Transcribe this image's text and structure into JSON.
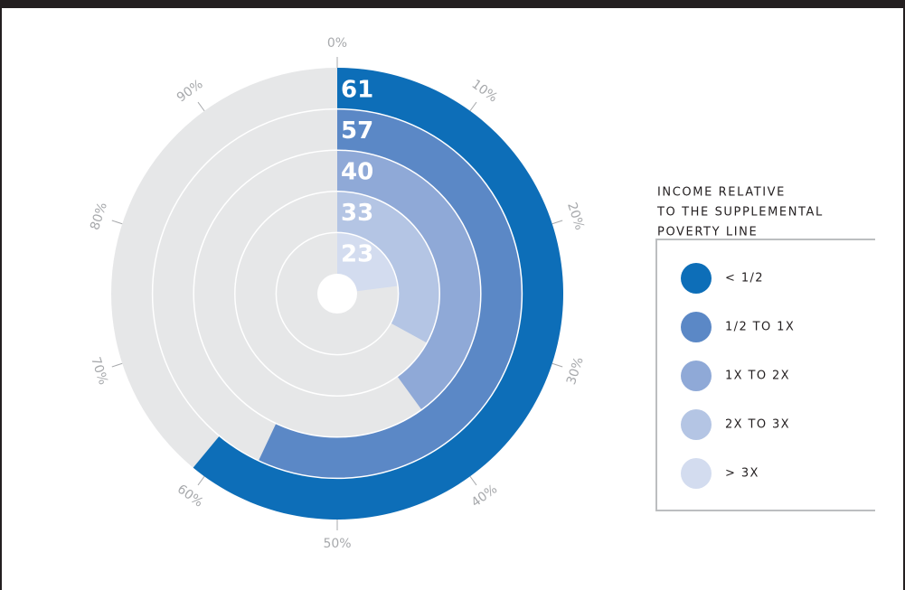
{
  "chart_data": {
    "type": "radial_bar",
    "categories": [
      "< 1/2",
      "1/2 TO 1X",
      "1X TO 2X",
      "2X TO 3X",
      "> 3X"
    ],
    "values": [
      61,
      57,
      40,
      33,
      23
    ],
    "colors": [
      "#0d6eb8",
      "#5b88c6",
      "#8fa9d7",
      "#b4c5e4",
      "#d3dcef"
    ],
    "legend_title": [
      "INCOME RELATIVE",
      "TO THE SUPPLEMENTAL",
      "POVERTY LINE"
    ],
    "xlim": [
      0,
      100
    ],
    "xticks": [
      {
        "value": 0,
        "label": "0%"
      },
      {
        "value": 10,
        "label": "10%"
      },
      {
        "value": 20,
        "label": "20%"
      },
      {
        "value": 30,
        "label": "30%"
      },
      {
        "value": 40,
        "label": "40%"
      },
      {
        "value": 50,
        "label": "50%"
      },
      {
        "value": 60,
        "label": "60%"
      },
      {
        "value": 70,
        "label": "70%"
      },
      {
        "value": 80,
        "label": "80%"
      },
      {
        "value": 90,
        "label": "90%"
      }
    ],
    "legend_position": "right"
  }
}
